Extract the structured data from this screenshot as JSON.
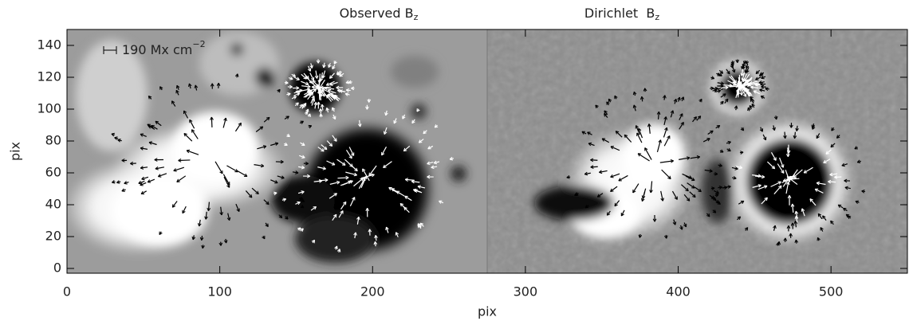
{
  "chart_data": {
    "type": "image",
    "panels": [
      {
        "title": "Observed B",
        "title_subscript": "z"
      },
      {
        "title": "Dirichlet  B",
        "title_subscript": "z"
      }
    ],
    "xlabel": "pix",
    "ylabel": "pix",
    "xlim": [
      0,
      550
    ],
    "ylim": [
      -3,
      150
    ],
    "xticks": [
      0,
      100,
      200,
      300,
      400,
      500
    ],
    "yticks": [
      0,
      20,
      40,
      60,
      80,
      100,
      120,
      140
    ],
    "annotation": {
      "text": "190 Mx cm",
      "superscript": "−2"
    }
  }
}
